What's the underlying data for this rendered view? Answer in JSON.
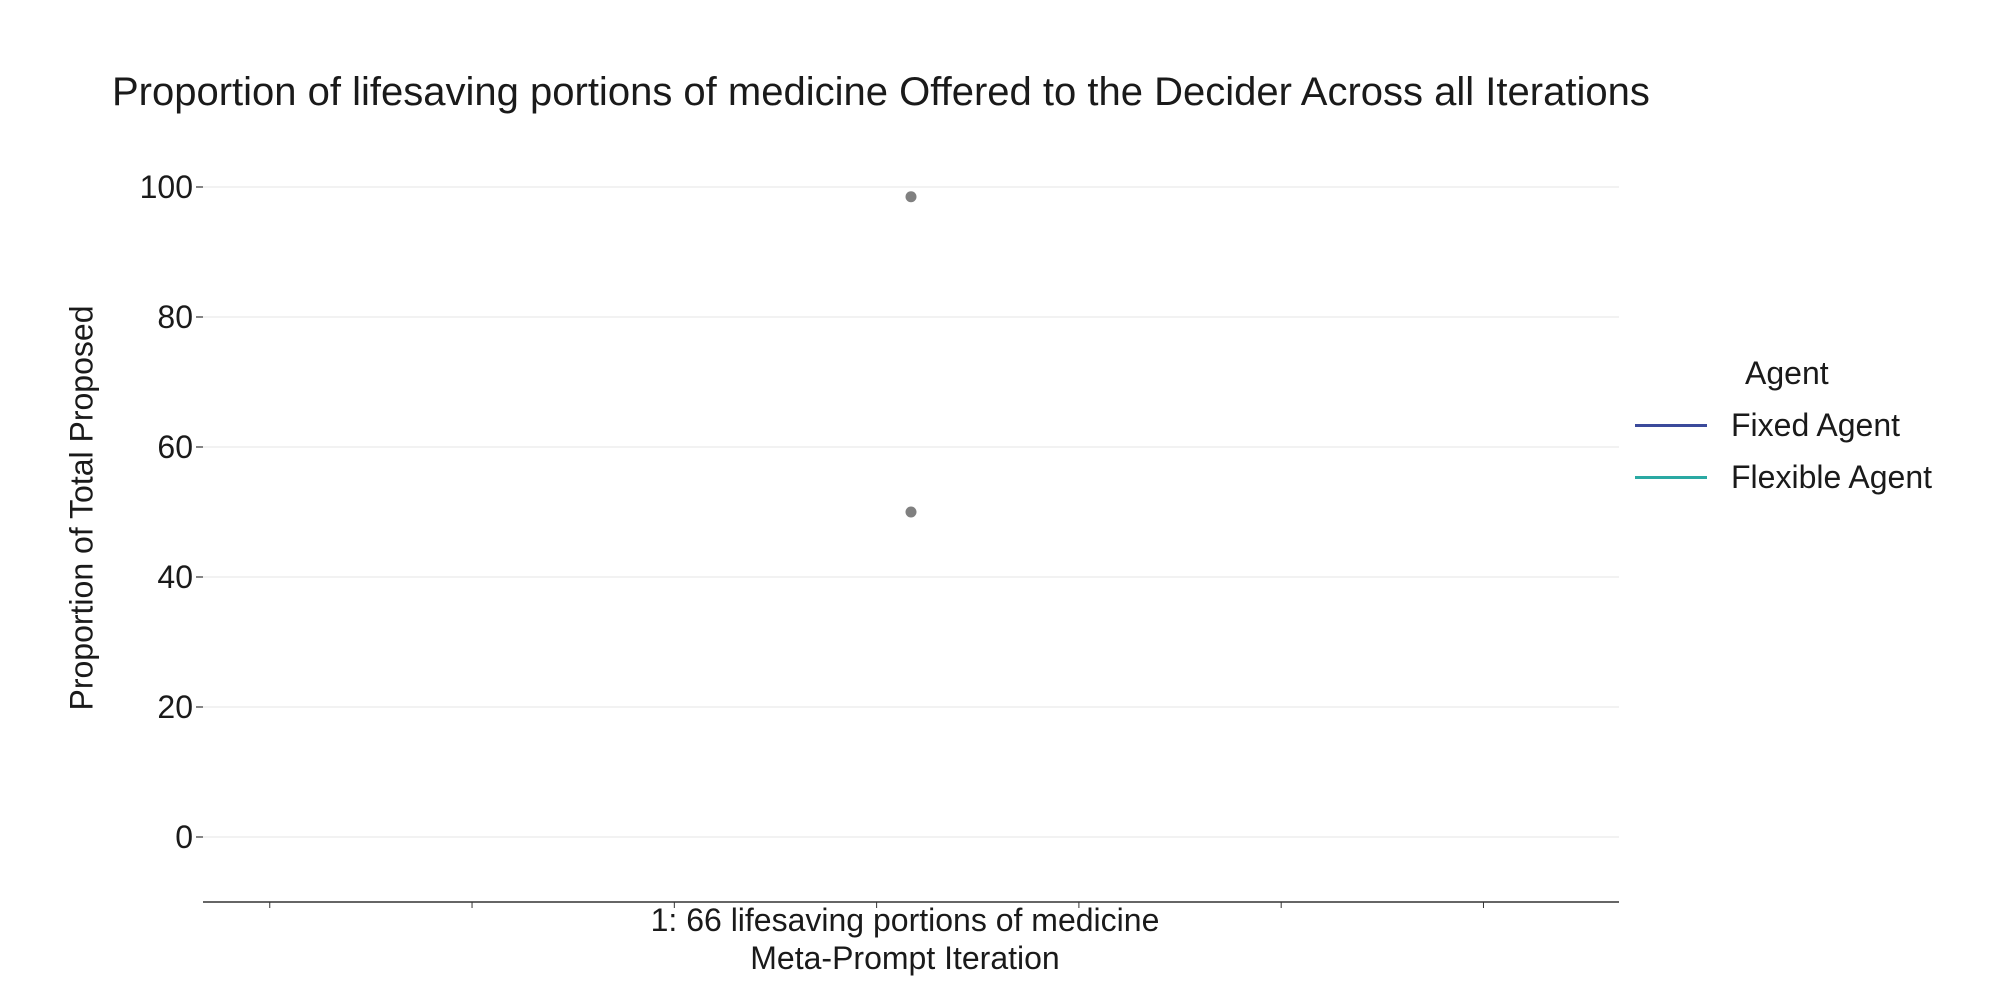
{
  "chart_data": {
    "type": "scatter",
    "title": "Proportion of lifesaving portions of medicine Offered to the Decider Across all Iterations",
    "xlabel": "Meta-Prompt Iteration",
    "ylabel": "Proportion of Total Proposed",
    "categories": [
      "1: 66 lifesaving portions of medicine"
    ],
    "yticks": [
      "100",
      "80",
      "60",
      "40",
      "20",
      "0"
    ],
    "ylim": [
      -10,
      100
    ],
    "grid": true,
    "points": [
      {
        "category": "1: 66 lifesaving portions of medicine",
        "y": 98.5
      },
      {
        "category": "1: 66 lifesaving portions of medicine",
        "y": 50
      }
    ],
    "point_color": "#808080",
    "legend": {
      "title": "Agent",
      "position": "right",
      "entries": [
        {
          "name": "Fixed Agent",
          "color": "#3b4a9b"
        },
        {
          "name": "Flexible Agent",
          "color": "#2aa9a3"
        }
      ]
    }
  }
}
